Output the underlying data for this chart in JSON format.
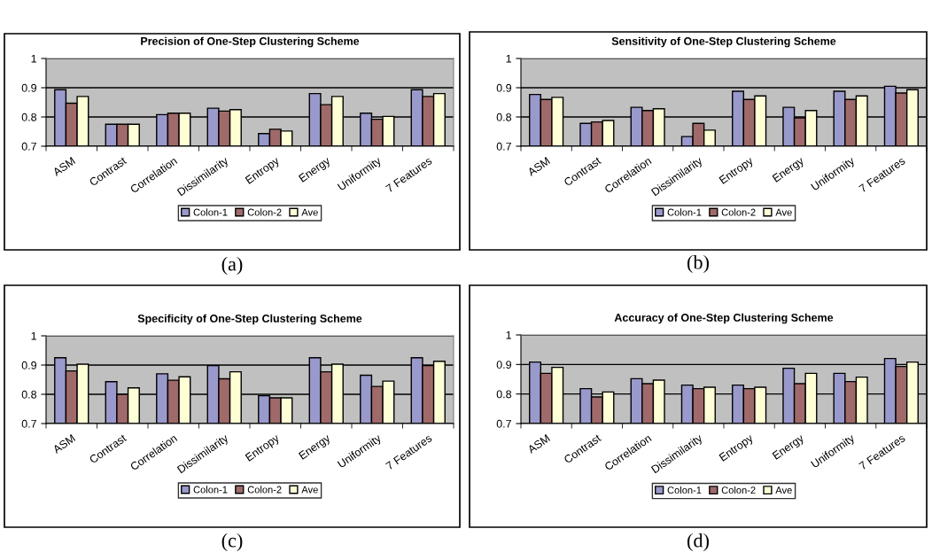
{
  "chart_data": [
    {
      "type": "bar",
      "title": "Precision of One-Step Clustering Scheme",
      "categories": [
        "ASM",
        "Contrast",
        "Correlation",
        "Dissimilarity",
        "Entropy",
        "Energy",
        "Uniformity",
        "7 Features"
      ],
      "series": [
        {
          "name": "Colon-1",
          "color": "#9999cc",
          "values": [
            0.893,
            0.775,
            0.808,
            0.83,
            0.743,
            0.88,
            0.813,
            0.893
          ]
        },
        {
          "name": "Colon-2",
          "color": "#a06a6a",
          "values": [
            0.847,
            0.775,
            0.813,
            0.82,
            0.758,
            0.842,
            0.792,
            0.87
          ]
        },
        {
          "name": "Ave",
          "color": "#ffffd6",
          "values": [
            0.87,
            0.775,
            0.813,
            0.825,
            0.752,
            0.87,
            0.802,
            0.88
          ]
        }
      ],
      "ylim": [
        0.7,
        1
      ],
      "yticks": [
        0.7,
        0.8,
        0.9,
        1
      ],
      "grid": "y",
      "legend": "bottom",
      "annotations": [
        "(a)"
      ]
    },
    {
      "type": "bar",
      "title": "Sensitivity of One-Step Clustering Scheme",
      "categories": [
        "ASM",
        "Contrast",
        "Correlation",
        "Dissimilarity",
        "Entropy",
        "Energy",
        "Uniformity",
        "7 Features"
      ],
      "series": [
        {
          "name": "Colon-1",
          "color": "#9999cc",
          "values": [
            0.877,
            0.778,
            0.833,
            0.733,
            0.888,
            0.833,
            0.888,
            0.905
          ]
        },
        {
          "name": "Colon-2",
          "color": "#a06a6a",
          "values": [
            0.86,
            0.783,
            0.822,
            0.778,
            0.86,
            0.797,
            0.86,
            0.882
          ]
        },
        {
          "name": "Ave",
          "color": "#ffffd6",
          "values": [
            0.867,
            0.788,
            0.828,
            0.755,
            0.872,
            0.822,
            0.872,
            0.893
          ]
        }
      ],
      "ylim": [
        0.7,
        1
      ],
      "yticks": [
        0.7,
        0.8,
        0.9,
        1
      ],
      "grid": "y",
      "legend": "bottom",
      "annotations": [
        "(b)"
      ]
    },
    {
      "type": "bar",
      "title": "Specificity of One-Step Clustering Scheme",
      "categories": [
        "ASM",
        "Contrast",
        "Correlation",
        "Dissimilarity",
        "Entropy",
        "Energy",
        "Uniformity",
        "7 Features"
      ],
      "series": [
        {
          "name": "Colon-1",
          "color": "#9999cc",
          "values": [
            0.925,
            0.843,
            0.87,
            0.898,
            0.795,
            0.925,
            0.865,
            0.925
          ]
        },
        {
          "name": "Colon-2",
          "color": "#a06a6a",
          "values": [
            0.88,
            0.8,
            0.848,
            0.853,
            0.788,
            0.877,
            0.827,
            0.898
          ]
        },
        {
          "name": "Ave",
          "color": "#ffffd6",
          "values": [
            0.903,
            0.822,
            0.86,
            0.877,
            0.788,
            0.903,
            0.845,
            0.913
          ]
        }
      ],
      "ylim": [
        0.7,
        1
      ],
      "yticks": [
        0.7,
        0.8,
        0.9,
        1
      ],
      "grid": "y",
      "legend": "bottom",
      "annotations": [
        "(c)"
      ]
    },
    {
      "type": "bar",
      "title": "Accuracy of One-Step Clustering Scheme",
      "categories": [
        "ASM",
        "Contrast",
        "Correlation",
        "Dissimilarity",
        "Entropy",
        "Energy",
        "Uniformity",
        "7 Features"
      ],
      "series": [
        {
          "name": "Colon-1",
          "color": "#9999cc",
          "values": [
            0.908,
            0.818,
            0.852,
            0.83,
            0.83,
            0.887,
            0.87,
            0.92
          ]
        },
        {
          "name": "Colon-2",
          "color": "#a06a6a",
          "values": [
            0.87,
            0.79,
            0.835,
            0.818,
            0.818,
            0.835,
            0.842,
            0.893
          ]
        },
        {
          "name": "Ave",
          "color": "#ffffd6",
          "values": [
            0.89,
            0.807,
            0.847,
            0.823,
            0.823,
            0.87,
            0.857,
            0.908
          ]
        }
      ],
      "ylim": [
        0.7,
        1
      ],
      "yticks": [
        0.7,
        0.8,
        0.9,
        1
      ],
      "grid": "y",
      "legend": "bottom",
      "annotations": [
        "(d)"
      ]
    }
  ]
}
